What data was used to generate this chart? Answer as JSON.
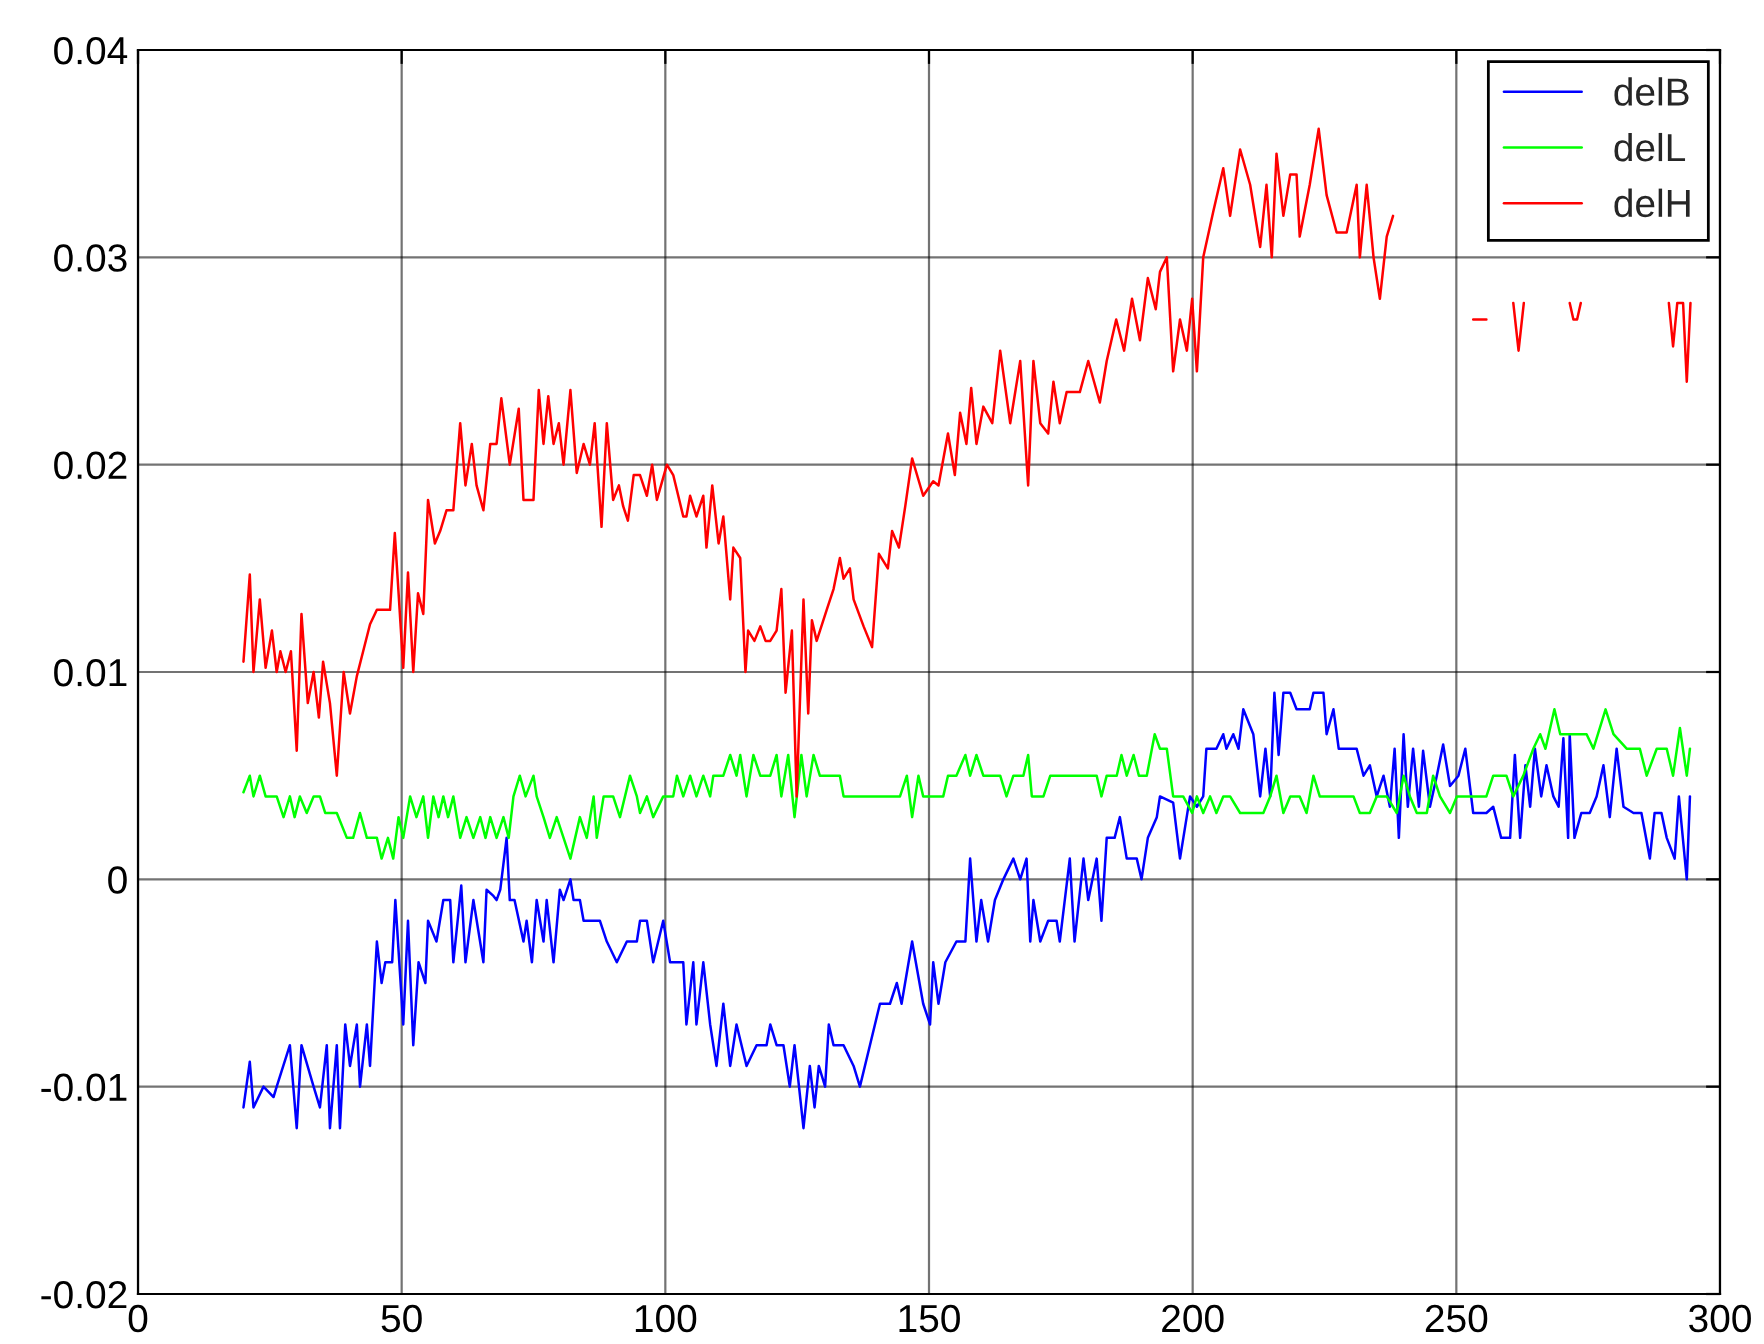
{
  "chart_data": {
    "type": "line",
    "xlim": [
      0,
      300
    ],
    "xticks": [
      0,
      50,
      100,
      150,
      200,
      250,
      300
    ],
    "ylim": [
      -0.02,
      0.04
    ],
    "yticks": [
      -0.02,
      -0.01,
      0,
      0.01,
      0.02,
      0.03,
      0.04
    ],
    "grid": true,
    "legend": "top right",
    "line_style": "solid",
    "series": [
      {
        "name": "delB",
        "color": "#0000ff",
        "x": [
          20.0,
          21.2,
          21.9,
          23.8,
          25.7,
          26.3,
          28.8,
          30.1,
          31.0,
          33.3,
          34.5,
          35.8,
          36.4,
          37.7,
          38.3,
          39.3,
          40.2,
          41.5,
          42.1,
          43.4,
          44.0,
          45.3,
          46.2,
          46.9,
          48.2,
          48.8,
          50.3,
          51.2,
          52.2,
          53.2,
          54.5,
          55.0,
          56.6,
          57.9,
          59.2,
          59.8,
          61.3,
          62.1,
          63.6,
          65.5,
          66.1,
          67.4,
          68.0,
          68.7,
          69.9,
          70.5,
          71.4,
          73.1,
          73.7,
          74.7,
          75.6,
          76.9,
          77.5,
          78.8,
          80.0,
          80.7,
          82.0,
          82.6,
          83.8,
          84.5,
          86.4,
          87.6,
          88.9,
          90.8,
          92.7,
          94.6,
          95.2,
          96.5,
          97.7,
          99.6,
          100.9,
          103.4,
          104.0,
          105.3,
          105.9,
          107.2,
          108.5,
          109.7,
          111.0,
          112.3,
          113.5,
          115.4,
          117.3,
          119.2,
          119.9,
          121.1,
          122.4,
          123.6,
          124.5,
          126.2,
          127.4,
          128.3,
          129.1,
          130.3,
          131.0,
          131.9,
          133.8,
          135.7,
          136.9,
          138.8,
          140.7,
          142.6,
          143.9,
          144.8,
          146.8,
          148.9,
          150.2,
          150.8,
          151.8,
          153.1,
          155.2,
          156.9,
          157.8,
          159.0,
          159.9,
          161.2,
          162.5,
          164.1,
          166.0,
          167.3,
          168.5,
          169.2,
          169.8,
          171.1,
          172.6,
          174.2,
          174.8,
          176.7,
          177.6,
          179.3,
          180.2,
          181.8,
          182.7,
          183.7,
          185.2,
          186.2,
          187.5,
          189.4,
          190.3,
          191.5,
          193.2,
          193.8,
          196.3,
          197.6,
          199.5,
          200.8,
          202.0,
          202.6,
          204.5,
          205.8,
          206.4,
          207.7,
          208.7,
          209.6,
          211.5,
          212.8,
          213.8,
          214.7,
          215.5,
          216.3,
          217.2,
          218.5,
          219.7,
          222.2,
          222.9,
          224.8,
          225.4,
          226.7,
          227.7,
          231.1,
          232.4,
          233.6,
          234.9,
          236.2,
          237.4,
          238.3,
          239.1,
          240.0,
          240.8,
          241.8,
          242.9,
          243.7,
          245.0,
          246.3,
          247.5,
          248.8,
          250.4,
          251.7,
          253.2,
          255.7,
          257.0,
          258.5,
          260.2,
          261.1,
          262.1,
          263.1,
          264.0,
          264.9,
          266.1,
          267.1,
          268.4,
          269.4,
          270.3,
          271.2,
          271.5,
          272.4,
          273.7,
          275.3,
          276.6,
          277.9,
          279.1,
          280.4,
          281.7,
          283.6,
          285.1,
          286.7,
          287.6,
          288.9,
          289.9,
          291.4,
          292.2,
          293.7,
          294.3
        ],
        "values": [
          -0.011,
          -0.0088,
          -0.011,
          -0.01,
          -0.0105,
          -0.01,
          -0.008,
          -0.012,
          -0.008,
          -0.01,
          -0.011,
          -0.008,
          -0.012,
          -0.008,
          -0.012,
          -0.007,
          -0.009,
          -0.007,
          -0.01,
          -0.007,
          -0.009,
          -0.003,
          -0.005,
          -0.004,
          -0.004,
          -0.001,
          -0.007,
          -0.002,
          -0.008,
          -0.004,
          -0.005,
          -0.002,
          -0.003,
          -0.001,
          -0.001,
          -0.004,
          -0.0003,
          -0.004,
          -0.001,
          -0.004,
          -0.0005,
          -0.0008,
          -0.001,
          -0.0005,
          0.002,
          -0.001,
          -0.001,
          -0.003,
          -0.002,
          -0.004,
          -0.001,
          -0.003,
          -0.001,
          -0.004,
          -0.0005,
          -0.001,
          0.0,
          -0.001,
          -0.001,
          -0.002,
          -0.002,
          -0.002,
          -0.003,
          -0.004,
          -0.003,
          -0.003,
          -0.002,
          -0.002,
          -0.004,
          -0.002,
          -0.004,
          -0.004,
          -0.007,
          -0.004,
          -0.007,
          -0.004,
          -0.007,
          -0.009,
          -0.006,
          -0.009,
          -0.007,
          -0.009,
          -0.008,
          -0.008,
          -0.007,
          -0.008,
          -0.008,
          -0.01,
          -0.008,
          -0.012,
          -0.009,
          -0.011,
          -0.009,
          -0.01,
          -0.007,
          -0.008,
          -0.008,
          -0.009,
          -0.01,
          -0.008,
          -0.006,
          -0.006,
          -0.005,
          -0.006,
          -0.003,
          -0.006,
          -0.007,
          -0.004,
          -0.006,
          -0.004,
          -0.003,
          -0.003,
          0.001,
          -0.003,
          -0.001,
          -0.003,
          -0.001,
          0.0,
          0.001,
          0.0,
          0.001,
          -0.003,
          -0.001,
          -0.003,
          -0.002,
          -0.002,
          -0.003,
          0.001,
          -0.003,
          0.001,
          -0.001,
          0.001,
          -0.002,
          0.002,
          0.002,
          0.003,
          0.001,
          0.001,
          0.0,
          0.002,
          0.003,
          0.004,
          0.0037,
          0.001,
          0.004,
          0.0035,
          0.004,
          0.0063,
          0.0063,
          0.007,
          0.0063,
          0.007,
          0.0063,
          0.0082,
          0.007,
          0.004,
          0.0063,
          0.004,
          0.009,
          0.006,
          0.009,
          0.009,
          0.0082,
          0.0082,
          0.009,
          0.009,
          0.007,
          0.0082,
          0.0063,
          0.0063,
          0.005,
          0.0055,
          0.004,
          0.005,
          0.0035,
          0.0063,
          0.002,
          0.007,
          0.0035,
          0.0063,
          0.0035,
          0.0062,
          0.0035,
          0.005,
          0.0065,
          0.0045,
          0.005,
          0.0063,
          0.0032,
          0.0032,
          0.0035,
          0.002,
          0.002,
          0.006,
          0.002,
          0.0055,
          0.0035,
          0.0063,
          0.004,
          0.0055,
          0.004,
          0.0035,
          0.0068,
          0.002,
          0.007,
          0.002,
          0.0032,
          0.0032,
          0.004,
          0.0055,
          0.003,
          0.0063,
          0.0035,
          0.0032,
          0.0032,
          0.001,
          0.0032,
          0.0032,
          0.002,
          0.001,
          0.004,
          0.0,
          0.004
        ]
      },
      {
        "name": "delL",
        "color": "#00ff00",
        "x": [
          20.0,
          21.2,
          21.9,
          23.1,
          24.2,
          26.3,
          27.6,
          28.8,
          29.7,
          30.7,
          32.0,
          33.3,
          34.5,
          35.5,
          37.7,
          39.6,
          40.8,
          42.1,
          43.4,
          45.3,
          46.2,
          47.4,
          48.4,
          49.4,
          50.3,
          51.6,
          52.8,
          54.1,
          55.0,
          56.0,
          57.0,
          57.9,
          58.8,
          59.8,
          61.1,
          62.3,
          63.6,
          64.9,
          65.9,
          66.8,
          68.0,
          69.3,
          70.3,
          71.2,
          72.4,
          73.5,
          75.0,
          75.6,
          76.9,
          78.1,
          79.4,
          80.7,
          82.0,
          83.8,
          85.1,
          86.4,
          87.0,
          88.3,
          90.1,
          91.4,
          93.3,
          94.6,
          95.2,
          96.5,
          97.7,
          99.6,
          101.5,
          102.2,
          103.4,
          104.7,
          105.9,
          107.2,
          108.5,
          109.1,
          111.0,
          112.3,
          113.5,
          114.2,
          115.4,
          116.7,
          118.0,
          119.9,
          121.1,
          122.0,
          123.3,
          124.5,
          125.8,
          126.8,
          128.1,
          129.3,
          133.1,
          133.8,
          144.5,
          145.8,
          146.8,
          148.0,
          148.9,
          152.7,
          153.6,
          155.2,
          156.9,
          157.8,
          159.0,
          160.3,
          163.5,
          164.7,
          166.0,
          167.9,
          168.8,
          169.5,
          171.7,
          173.0,
          181.8,
          182.7,
          183.7,
          185.6,
          186.5,
          187.5,
          188.8,
          189.8,
          191.3,
          192.8,
          193.8,
          195.1,
          196.3,
          198.2,
          199.9,
          200.8,
          202.0,
          203.3,
          204.5,
          205.8,
          207.1,
          209.0,
          213.4,
          214.7,
          215.9,
          217.2,
          218.5,
          220.3,
          221.6,
          222.9,
          224.1,
          230.5,
          231.7,
          233.6,
          234.9,
          236.8,
          238.7,
          240.0,
          241.2,
          242.5,
          244.4,
          245.6,
          246.9,
          248.8,
          250.1,
          255.7,
          257.0,
          259.5,
          260.8,
          262.7,
          264.6,
          265.9,
          266.9,
          268.6,
          269.7,
          274.7,
          276.0,
          278.3,
          279.8,
          282.3,
          284.8,
          286.1,
          288.0,
          289.9,
          291.1,
          292.4,
          293.7,
          294.3
        ],
        "values": [
          0.0042,
          0.005,
          0.004,
          0.005,
          0.004,
          0.004,
          0.003,
          0.004,
          0.003,
          0.004,
          0.0032,
          0.004,
          0.004,
          0.0032,
          0.0032,
          0.002,
          0.002,
          0.0032,
          0.002,
          0.002,
          0.001,
          0.002,
          0.001,
          0.003,
          0.002,
          0.004,
          0.003,
          0.004,
          0.002,
          0.004,
          0.003,
          0.004,
          0.003,
          0.004,
          0.002,
          0.003,
          0.002,
          0.003,
          0.002,
          0.003,
          0.002,
          0.003,
          0.002,
          0.004,
          0.005,
          0.004,
          0.005,
          0.004,
          0.003,
          0.002,
          0.003,
          0.002,
          0.001,
          0.003,
          0.002,
          0.004,
          0.002,
          0.004,
          0.004,
          0.003,
          0.005,
          0.004,
          0.0032,
          0.004,
          0.003,
          0.004,
          0.004,
          0.005,
          0.004,
          0.005,
          0.004,
          0.005,
          0.004,
          0.005,
          0.005,
          0.006,
          0.005,
          0.006,
          0.004,
          0.006,
          0.005,
          0.005,
          0.006,
          0.004,
          0.006,
          0.003,
          0.006,
          0.004,
          0.006,
          0.005,
          0.005,
          0.004,
          0.004,
          0.005,
          0.003,
          0.005,
          0.004,
          0.004,
          0.005,
          0.005,
          0.006,
          0.005,
          0.006,
          0.005,
          0.005,
          0.004,
          0.005,
          0.005,
          0.006,
          0.004,
          0.004,
          0.005,
          0.005,
          0.004,
          0.005,
          0.005,
          0.006,
          0.005,
          0.006,
          0.005,
          0.005,
          0.007,
          0.0063,
          0.0063,
          0.004,
          0.004,
          0.0032,
          0.004,
          0.0032,
          0.004,
          0.0032,
          0.004,
          0.004,
          0.0032,
          0.0032,
          0.004,
          0.005,
          0.0032,
          0.004,
          0.004,
          0.0032,
          0.005,
          0.004,
          0.004,
          0.0032,
          0.0032,
          0.004,
          0.004,
          0.0032,
          0.005,
          0.004,
          0.0032,
          0.0032,
          0.005,
          0.004,
          0.0032,
          0.004,
          0.004,
          0.005,
          0.005,
          0.004,
          0.005,
          0.0063,
          0.007,
          0.0063,
          0.0082,
          0.007,
          0.007,
          0.0063,
          0.0082,
          0.007,
          0.0063,
          0.0063,
          0.005,
          0.0063,
          0.0063,
          0.005,
          0.0073,
          0.005,
          0.0063
        ]
      },
      {
        "name": "delH",
        "color": "#ff0000",
        "x": [
          20.0,
          21.2,
          21.9,
          23.1,
          24.2,
          25.4,
          26.3,
          27.0,
          28.0,
          29.0,
          30.1,
          31.0,
          32.2,
          33.3,
          34.3,
          35.1,
          36.4,
          37.7,
          39.0,
          40.2,
          41.5,
          42.7,
          44.0,
          45.3,
          47.8,
          48.7,
          50.3,
          51.2,
          52.2,
          53.1,
          54.1,
          55.0,
          56.3,
          57.3,
          58.5,
          59.8,
          61.1,
          62.1,
          63.3,
          64.2,
          65.5,
          66.8,
          68.0,
          68.9,
          70.5,
          72.2,
          73.1,
          75.0,
          76.0,
          76.9,
          77.8,
          78.8,
          79.8,
          80.7,
          82.0,
          83.2,
          84.5,
          85.7,
          86.6,
          87.9,
          88.9,
          90.1,
          91.2,
          92.0,
          92.9,
          94.0,
          95.2,
          96.5,
          97.5,
          98.4,
          100.3,
          101.5,
          103.4,
          104.0,
          104.7,
          105.9,
          107.2,
          107.8,
          108.9,
          110.1,
          111.0,
          112.3,
          112.9,
          114.2,
          115.2,
          115.7,
          116.9,
          118.0,
          119.0,
          119.9,
          121.1,
          122.0,
          122.8,
          124.0,
          124.9,
          126.2,
          127.1,
          127.8,
          128.7,
          130.6,
          131.9,
          133.1,
          133.8,
          135.0,
          135.7,
          137.6,
          139.2,
          140.5,
          142.2,
          143.0,
          144.3,
          145.5,
          146.8,
          148.9,
          150.8,
          151.8,
          153.6,
          154.9,
          155.9,
          157.1,
          158.0,
          159.0,
          160.3,
          162.0,
          163.5,
          165.4,
          167.3,
          168.8,
          169.8,
          171.1,
          172.6,
          173.6,
          174.8,
          176.1,
          178.6,
          180.2,
          182.4,
          183.7,
          185.5,
          187.0,
          188.5,
          190.0,
          191.5,
          193.0,
          193.8,
          195.1,
          196.3,
          197.6,
          198.9,
          199.9,
          200.8,
          202.0,
          203.9,
          205.8,
          207.1,
          209.0,
          210.9,
          212.8,
          214.0,
          215.0,
          215.9,
          217.2,
          218.5,
          219.7,
          220.3,
          222.2,
          223.9,
          225.4,
          227.3,
          229.2,
          231.1,
          231.7,
          233.0,
          234.3,
          235.5,
          236.8,
          238.0,
          239.0,
          253.2,
          255.7,
          257.0,
          260.8,
          261.8,
          262.8,
          263.5,
          271.5,
          272.2,
          272.9,
          273.6,
          274.3,
          290.3,
          291.1,
          291.9,
          293.0,
          293.7,
          294.4
        ],
        "values": [
          0.0105,
          0.0147,
          0.01,
          0.0135,
          0.0102,
          0.012,
          0.01,
          0.011,
          0.01,
          0.011,
          0.0062,
          0.0128,
          0.0085,
          0.01,
          0.0078,
          0.0105,
          0.0085,
          0.005,
          0.01,
          0.008,
          0.0098,
          0.011,
          0.0123,
          0.013,
          0.013,
          0.0167,
          0.0102,
          0.0148,
          0.01,
          0.0138,
          0.0128,
          0.0183,
          0.0162,
          0.0168,
          0.0178,
          0.0178,
          0.022,
          0.019,
          0.021,
          0.019,
          0.0178,
          0.021,
          0.021,
          0.0232,
          0.02,
          0.0227,
          0.0183,
          0.0183,
          0.0236,
          0.021,
          0.0233,
          0.021,
          0.022,
          0.02,
          0.0236,
          0.0196,
          0.021,
          0.02,
          0.022,
          0.017,
          0.022,
          0.0183,
          0.019,
          0.018,
          0.0173,
          0.0195,
          0.0195,
          0.0185,
          0.02,
          0.0183,
          0.02,
          0.0195,
          0.0175,
          0.0175,
          0.0185,
          0.0175,
          0.0185,
          0.016,
          0.019,
          0.0162,
          0.0175,
          0.0135,
          0.016,
          0.0155,
          0.01,
          0.012,
          0.0115,
          0.0122,
          0.0115,
          0.0115,
          0.012,
          0.014,
          0.009,
          0.012,
          0.004,
          0.0135,
          0.008,
          0.0125,
          0.0115,
          0.013,
          0.014,
          0.0155,
          0.0145,
          0.015,
          0.0135,
          0.0122,
          0.0112,
          0.0157,
          0.015,
          0.0168,
          0.016,
          0.018,
          0.0203,
          0.0185,
          0.0192,
          0.019,
          0.0215,
          0.0195,
          0.0225,
          0.021,
          0.0237,
          0.021,
          0.0228,
          0.022,
          0.0255,
          0.022,
          0.025,
          0.019,
          0.025,
          0.022,
          0.0215,
          0.024,
          0.022,
          0.0235,
          0.0235,
          0.025,
          0.023,
          0.025,
          0.027,
          0.0255,
          0.028,
          0.026,
          0.029,
          0.0275,
          0.0293,
          0.03,
          0.0245,
          0.027,
          0.0255,
          0.028,
          0.0245,
          0.03,
          0.0322,
          0.0343,
          0.032,
          0.0352,
          0.0335,
          0.0305,
          0.0335,
          0.03,
          0.035,
          0.032,
          0.034,
          0.034,
          0.031,
          0.0335,
          0.0362,
          0.033,
          0.0312,
          0.0312,
          0.0335,
          0.03,
          0.0335,
          0.03,
          0.028,
          0.031,
          0.032,
          null,
          0.027,
          0.027,
          null,
          0.0278,
          0.0255,
          0.0278,
          null,
          0.0278,
          0.027,
          0.027,
          0.0278,
          null,
          0.0278,
          0.0257,
          0.0278,
          0.0278,
          0.024,
          0.0278
        ]
      }
    ]
  }
}
